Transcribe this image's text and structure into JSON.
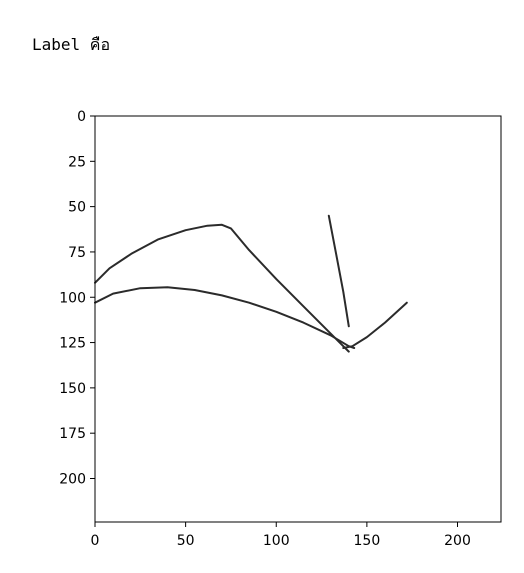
{
  "output": {
    "text": "Label คือ"
  },
  "chart_data": {
    "type": "line",
    "title": "",
    "xlabel": "",
    "ylabel": "",
    "xlim": [
      0,
      224
    ],
    "ylim": [
      224,
      0
    ],
    "y_inverted": true,
    "grid": false,
    "x_ticks": [
      0,
      50,
      100,
      150,
      200
    ],
    "y_ticks": [
      0,
      25,
      50,
      75,
      100,
      125,
      150,
      175,
      200
    ],
    "line_color": "#2b2b2b",
    "series": [
      {
        "points": [
          [
            0,
            92
          ],
          [
            8,
            84
          ],
          [
            20,
            76
          ],
          [
            35,
            68
          ],
          [
            50,
            63
          ],
          [
            62,
            60.5
          ],
          [
            70,
            60
          ],
          [
            75,
            62
          ],
          [
            85,
            74
          ],
          [
            100,
            90
          ],
          [
            115,
            105
          ],
          [
            128,
            118
          ],
          [
            137,
            127
          ],
          [
            140,
            130
          ]
        ]
      },
      {
        "points": [
          [
            0,
            103
          ],
          [
            10,
            98
          ],
          [
            25,
            95
          ],
          [
            40,
            94.5
          ],
          [
            55,
            96
          ],
          [
            70,
            99
          ],
          [
            85,
            103
          ],
          [
            100,
            108
          ],
          [
            115,
            114
          ],
          [
            130,
            121
          ],
          [
            140,
            127
          ],
          [
            143,
            128
          ]
        ]
      },
      {
        "points": [
          [
            129,
            55
          ],
          [
            133,
            76
          ],
          [
            137,
            97
          ],
          [
            140,
            116
          ]
        ]
      },
      {
        "points": [
          [
            137,
            128
          ],
          [
            142,
            127
          ],
          [
            150,
            122
          ],
          [
            160,
            114
          ],
          [
            172,
            103
          ]
        ]
      }
    ]
  }
}
